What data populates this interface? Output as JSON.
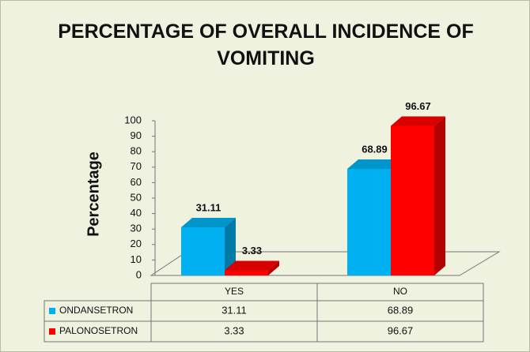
{
  "chart_data": {
    "type": "bar",
    "title": "PERCENTAGE OF OVERALL INCIDENCE OF VOMITING",
    "y_label": "Percentage",
    "categories": [
      "YES",
      "NO"
    ],
    "series": [
      {
        "name": "ONDANSETRON",
        "color": "#00b0f0",
        "values": [
          31.11,
          68.89
        ]
      },
      {
        "name": "PALONOSETRON",
        "color": "#ff0000",
        "values": [
          3.33,
          96.67
        ]
      }
    ],
    "ylim": [
      0,
      100
    ],
    "yticks": [
      0,
      10,
      20,
      30,
      40,
      50,
      60,
      70,
      80,
      90,
      100
    ],
    "data_table": true
  }
}
